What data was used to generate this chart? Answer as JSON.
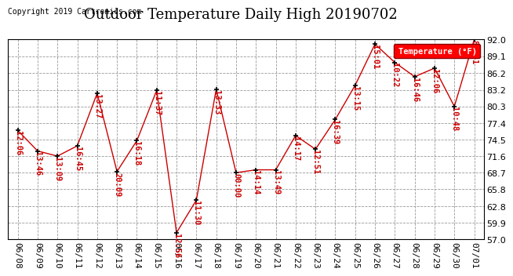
{
  "title": "Outdoor Temperature Daily High 20190702",
  "copyright": "Copyright 2019 Cartronics.com",
  "legend_label": "Temperature (°F)",
  "ylim": [
    57.0,
    92.0
  ],
  "yticks": [
    57.0,
    59.9,
    62.8,
    65.8,
    68.7,
    71.6,
    74.5,
    77.4,
    80.3,
    83.2,
    86.2,
    89.1,
    92.0
  ],
  "background_color": "#ffffff",
  "grid_color": "#999999",
  "line_color": "#cc0000",
  "marker_color": "#000000",
  "dates": [
    "06/08",
    "06/09",
    "06/10",
    "06/11",
    "06/12",
    "06/13",
    "06/14",
    "06/15",
    "06/16",
    "06/17",
    "06/18",
    "06/19",
    "06/20",
    "06/21",
    "06/22",
    "06/23",
    "06/24",
    "06/25",
    "06/26",
    "06/27",
    "06/28",
    "06/29",
    "06/30",
    "07/01"
  ],
  "temps": [
    76.1,
    72.5,
    71.6,
    73.4,
    82.6,
    68.9,
    74.3,
    83.1,
    58.2,
    63.9,
    83.3,
    68.7,
    69.2,
    69.2,
    75.2,
    72.8,
    78.0,
    84.0,
    91.2,
    88.0,
    85.5,
    87.0,
    80.3,
    92.0
  ],
  "labels": [
    "12:06",
    "13:46",
    "13:09",
    "16:45",
    "13:27",
    "20:09",
    "16:18",
    "11:37",
    "12:56",
    "11:30",
    "13:33",
    "00:00",
    "14:14",
    "13:49",
    "14:17",
    "12:51",
    "16:39",
    "13:15",
    "15:01",
    "10:22",
    "16:46",
    "12:06",
    "10:48",
    "85:51"
  ],
  "label_color": "#cc0000",
  "title_fontsize": 13,
  "tick_fontsize": 8,
  "annot_fontsize": 7.5
}
